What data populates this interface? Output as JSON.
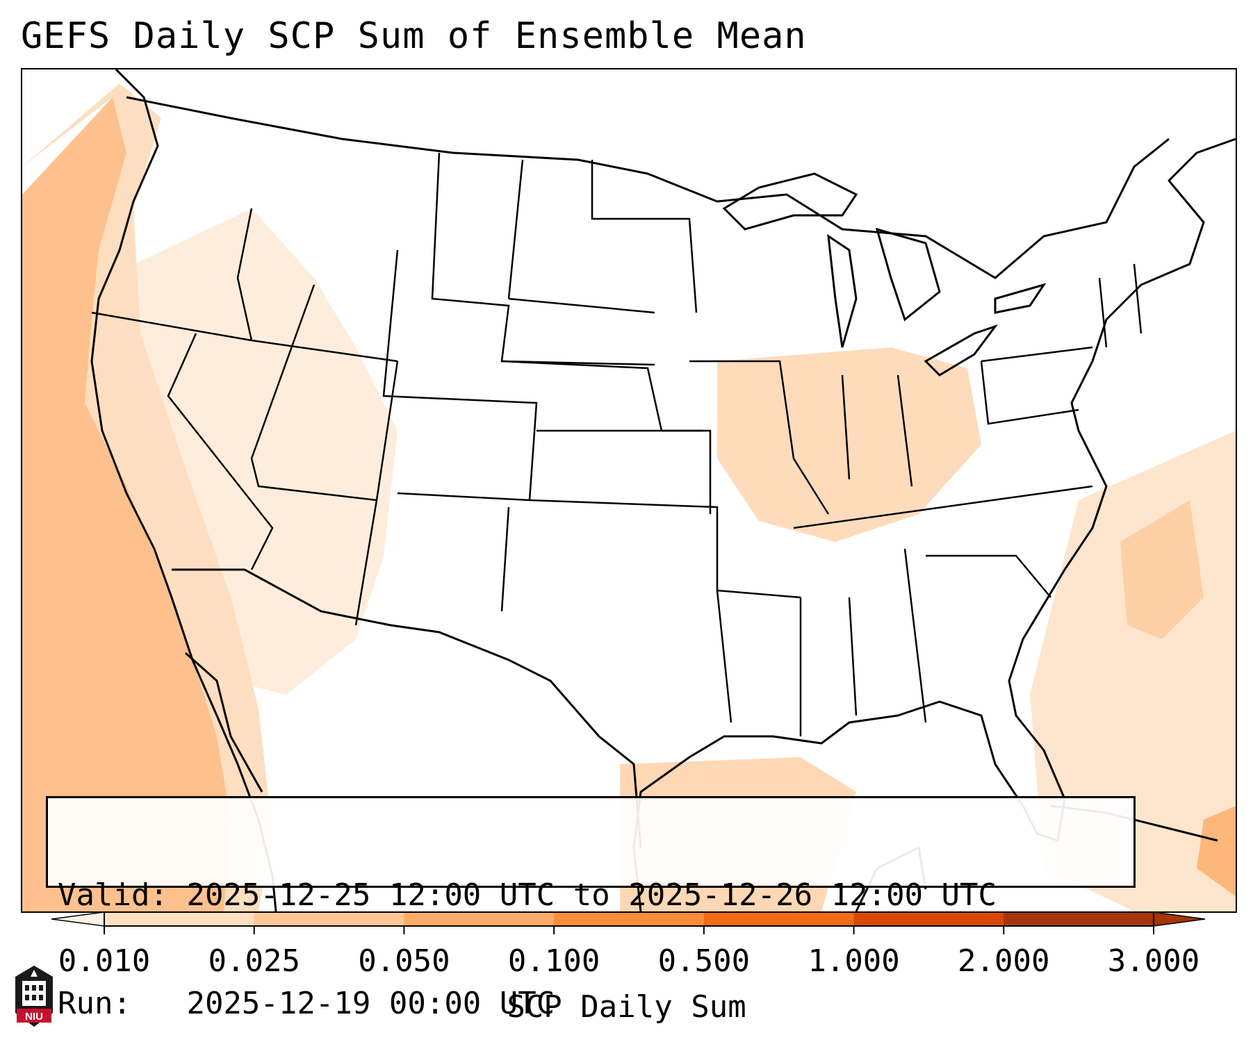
{
  "title": "GEFS Daily SCP Sum of Ensemble Mean",
  "info": {
    "valid_label": "Valid:",
    "valid_value": "2025-12-25 12:00 UTC to 2025-12-26 12:00 UTC",
    "run_label": "Run:",
    "run_value": "2025-12-19 00:00 UTC"
  },
  "colorbar": {
    "label": "SCP Daily Sum",
    "ticks": [
      "0.010",
      "0.025",
      "0.050",
      "0.100",
      "0.500",
      "1.000",
      "2.000",
      "3.000"
    ],
    "colors": [
      "#fff3e6",
      "#fedfc0",
      "#fdc896",
      "#fdab67",
      "#fd8d3c",
      "#f26b15",
      "#d94801",
      "#a63603"
    ],
    "extend": "both"
  },
  "map": {
    "ocean_fill": "#fdab67",
    "land_fill": "#ffffff",
    "line_color": "#000000"
  },
  "logo": {
    "text": "NIU",
    "color": "#c8102e"
  }
}
